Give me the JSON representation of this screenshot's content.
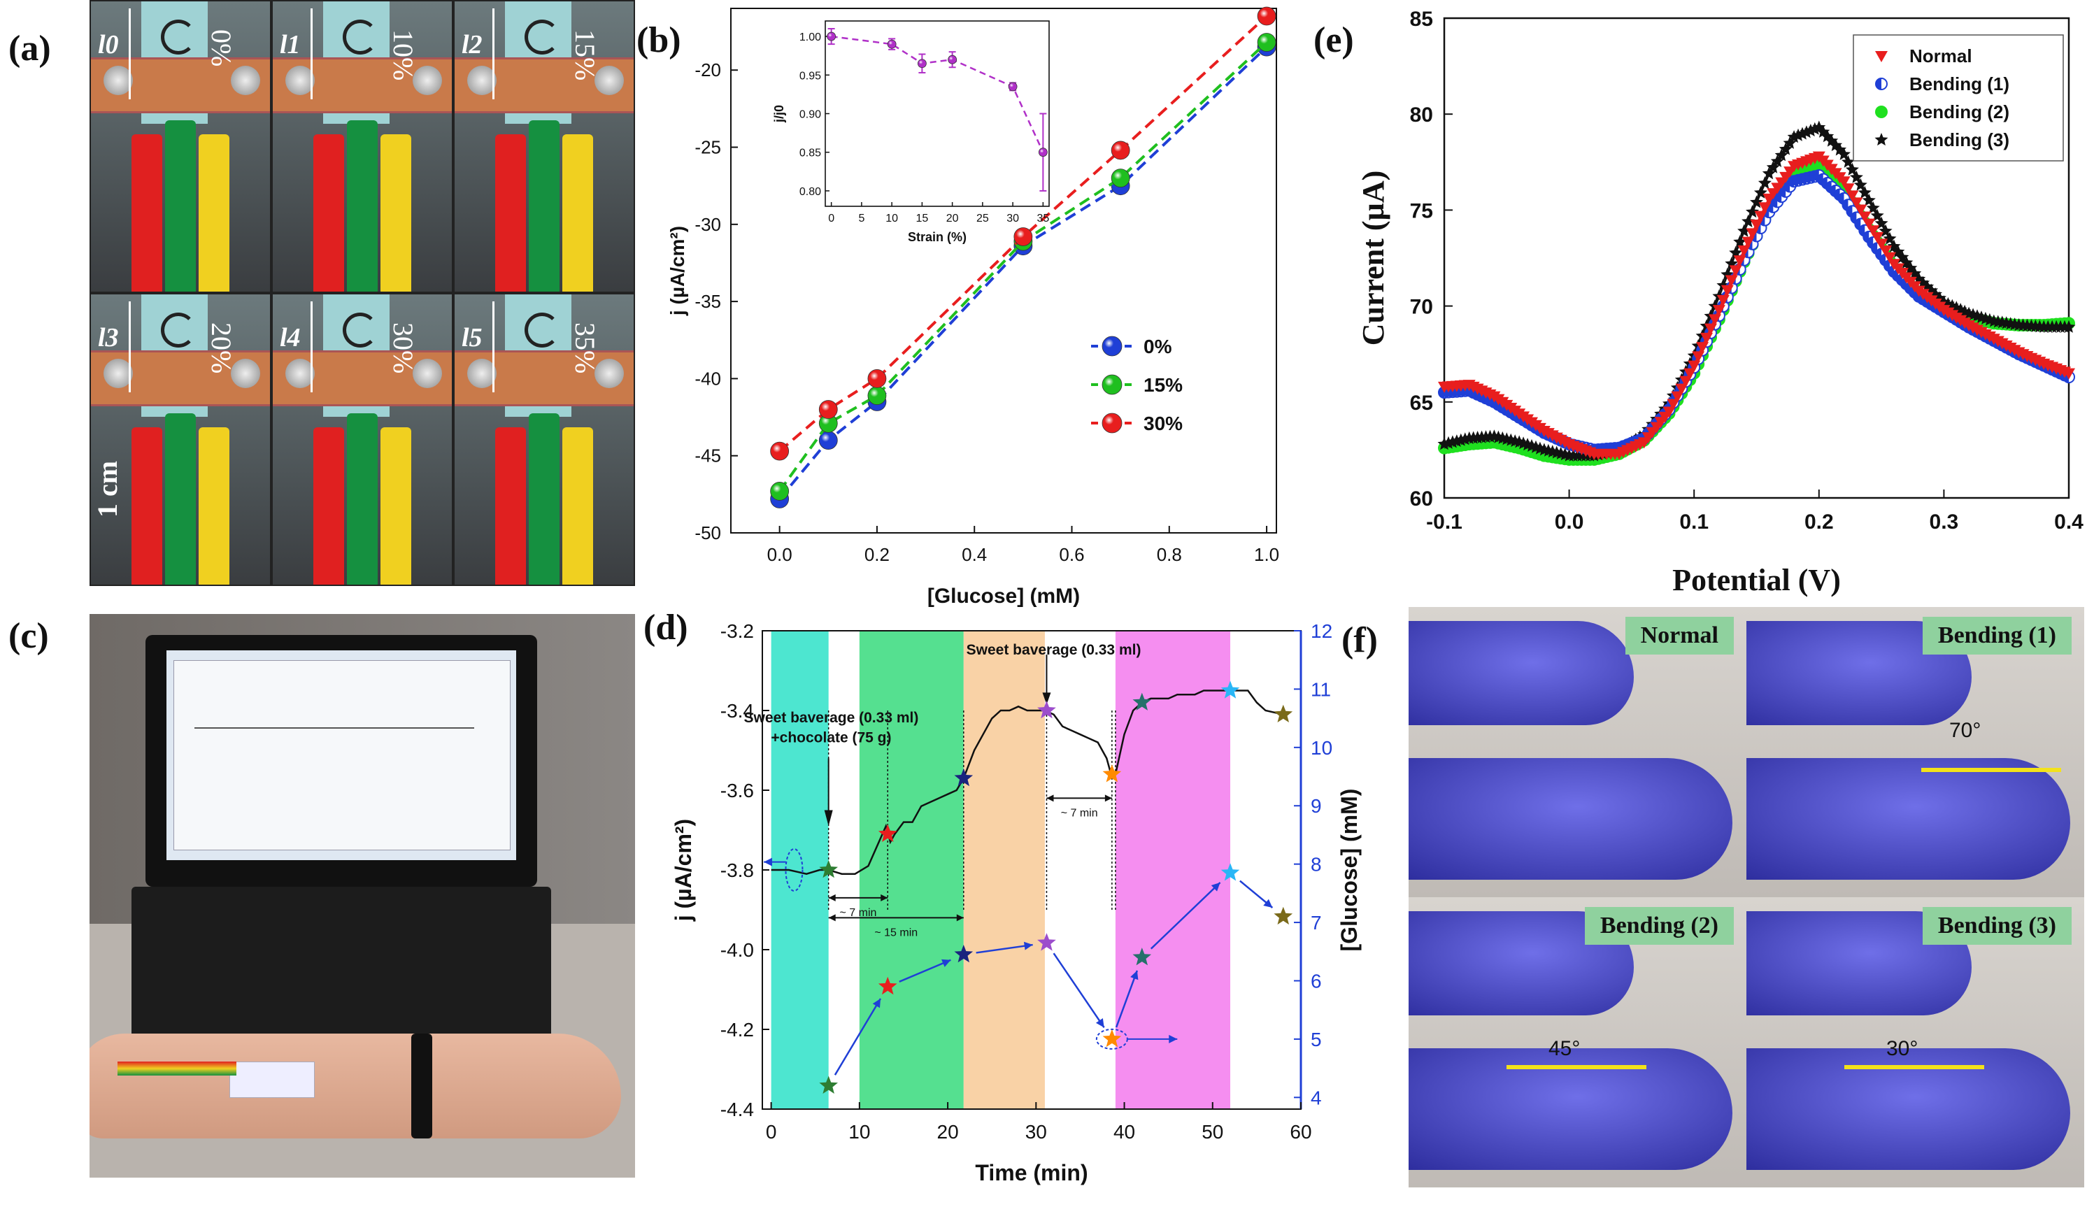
{
  "panel_labels": {
    "a": "(a)",
    "b": "(b)",
    "c": "(c)",
    "d": "(d)",
    "e": "(e)",
    "f": "(f)"
  },
  "panel_a": {
    "cells": [
      {
        "length_label": "l0",
        "strain": "0%"
      },
      {
        "length_label": "l1",
        "strain": "10%"
      },
      {
        "length_label": "l2",
        "strain": "15%"
      },
      {
        "length_label": "l3",
        "strain": "20%"
      },
      {
        "length_label": "l4",
        "strain": "30%"
      },
      {
        "length_label": "l5",
        "strain": "35%"
      }
    ],
    "scale_bar": "1 cm"
  },
  "panel_f": {
    "labels": [
      "Normal",
      "Bending (1)",
      "Bending (2)",
      "Bending (3)"
    ],
    "angles": [
      "",
      "70°",
      "45°",
      "30°"
    ]
  },
  "colors": {
    "blue": "#1f3fd6",
    "green": "#1fbf1f",
    "red": "#e81e1e",
    "purple": "#b030c8"
  },
  "chart_data": [
    {
      "id": "b",
      "type": "line",
      "xlabel": "[Glucose] (mM)",
      "ylabel": "j (µA/cm²)",
      "xlim": [
        -0.1,
        1.02
      ],
      "ylim": [
        -50,
        -16
      ],
      "xticks": [
        0.0,
        0.2,
        0.4,
        0.6,
        0.8,
        1.0
      ],
      "yticks": [
        -50,
        -45,
        -40,
        -35,
        -30,
        -25,
        -20
      ],
      "x": [
        0,
        0.1,
        0.2,
        0.5,
        0.7,
        1.0
      ],
      "series": [
        {
          "name": "0%",
          "color": "#1f3fd6",
          "values": [
            -47.8,
            -44.0,
            -41.5,
            -31.4,
            -27.5,
            -18.5
          ]
        },
        {
          "name": "15%",
          "color": "#1fbf1f",
          "values": [
            -47.3,
            -42.9,
            -41.1,
            -31.1,
            -27.0,
            -18.2
          ]
        },
        {
          "name": "30%",
          "color": "#e81e1e",
          "values": [
            -44.7,
            -42.0,
            -40.0,
            -30.8,
            -25.2,
            -16.5
          ]
        }
      ],
      "legend_position": "middle-right",
      "inset": {
        "type": "line",
        "xlabel": "Strain (%)",
        "ylabel": "j/j0",
        "xlim": [
          -1,
          36
        ],
        "ylim": [
          0.78,
          1.02
        ],
        "xticks": [
          0,
          5,
          10,
          15,
          20,
          25,
          30,
          35
        ],
        "yticks": [
          0.8,
          0.85,
          0.9,
          0.95,
          1.0
        ],
        "x": [
          0,
          10,
          15,
          20,
          30,
          35
        ],
        "values": [
          1.0,
          0.99,
          0.965,
          0.97,
          0.935,
          0.85
        ],
        "errors": [
          0.01,
          0.007,
          0.012,
          0.01,
          0.005,
          0.05
        ],
        "color": "#b030c8"
      }
    },
    {
      "id": "d",
      "type": "line",
      "xlabel": "Time (min)",
      "ylabel": "j (µA/cm²)",
      "ylabel_right": "[Glucose] (mM)",
      "xlim": [
        -1,
        60
      ],
      "ylim": [
        -4.4,
        -3.2
      ],
      "ylim_right": [
        3.8,
        12
      ],
      "xticks": [
        0,
        10,
        20,
        30,
        40,
        50,
        60
      ],
      "yticks": [
        -4.4,
        -4.2,
        -4.0,
        -3.8,
        -3.6,
        -3.4,
        -3.2
      ],
      "yticks_right": [
        4,
        5,
        6,
        7,
        8,
        9,
        10,
        11,
        12
      ],
      "bands": [
        {
          "x0": 0,
          "x1": 6.5,
          "color": "#4de6d0"
        },
        {
          "x0": 10,
          "x1": 21.8,
          "color": "#55e090"
        },
        {
          "x0": 21.8,
          "x1": 31,
          "color": "#f9d2a6"
        },
        {
          "x0": 39,
          "x1": 52,
          "color": "#f58ef0"
        }
      ],
      "current_trace": {
        "x": [
          0,
          2,
          4,
          5.5,
          6.5,
          8,
          9.5,
          11,
          12,
          13,
          13.5,
          14,
          15,
          16,
          17,
          18,
          19,
          20,
          21,
          21.8,
          23,
          24,
          25,
          26,
          27,
          28,
          29,
          30,
          31,
          32,
          33,
          34,
          35,
          36,
          37,
          38,
          38.5,
          39,
          40,
          41,
          42,
          43,
          44,
          45,
          46,
          47,
          48,
          49,
          50,
          52,
          54,
          55,
          56,
          58
        ],
        "values": [
          -3.8,
          -3.8,
          -3.81,
          -3.8,
          -3.8,
          -3.81,
          -3.81,
          -3.79,
          -3.74,
          -3.69,
          -3.73,
          -3.71,
          -3.68,
          -3.68,
          -3.64,
          -3.63,
          -3.62,
          -3.61,
          -3.6,
          -3.57,
          -3.5,
          -3.46,
          -3.42,
          -3.4,
          -3.4,
          -3.39,
          -3.4,
          -3.4,
          -3.4,
          -3.41,
          -3.44,
          -3.45,
          -3.46,
          -3.47,
          -3.48,
          -3.52,
          -3.56,
          -3.56,
          -3.46,
          -3.4,
          -3.38,
          -3.37,
          -3.37,
          -3.37,
          -3.36,
          -3.36,
          -3.36,
          -3.35,
          -3.35,
          -3.35,
          -3.35,
          -3.38,
          -3.4,
          -3.41
        ]
      },
      "current_stars": [
        {
          "x": 6.5,
          "y": -3.8,
          "color": "#2e7d32"
        },
        {
          "x": 13.2,
          "y": -3.71,
          "color": "#e81e1e"
        },
        {
          "x": 21.8,
          "y": -3.57,
          "color": "#1a237e"
        },
        {
          "x": 31.2,
          "y": -3.4,
          "color": "#9c4dcc"
        },
        {
          "x": 38.6,
          "y": -3.56,
          "color": "#ff8a00"
        },
        {
          "x": 42,
          "y": -3.38,
          "color": "#26706b"
        },
        {
          "x": 52,
          "y": -3.35,
          "color": "#29b6f6"
        },
        {
          "x": 58,
          "y": -3.41,
          "color": "#7a6a1a"
        }
      ],
      "glucose_stars": [
        {
          "x": 6.5,
          "y": 4.2,
          "color": "#2e7d32"
        },
        {
          "x": 13.2,
          "y": 5.9,
          "color": "#e81e1e"
        },
        {
          "x": 21.8,
          "y": 6.45,
          "color": "#1a237e"
        },
        {
          "x": 31.2,
          "y": 6.65,
          "color": "#9c4dcc"
        },
        {
          "x": 38.6,
          "y": 5.0,
          "color": "#ff8a00"
        },
        {
          "x": 42,
          "y": 6.4,
          "color": "#26706b"
        },
        {
          "x": 52,
          "y": 7.85,
          "color": "#29b6f6"
        },
        {
          "x": 58,
          "y": 7.1,
          "color": "#7a6a1a"
        }
      ],
      "annotations": {
        "event1": "Sweet baverage (0.33 ml)",
        "event1b": "+chocolate (75 g)",
        "event2": "Sweet baverage (0.33 ml)",
        "interval1": "~ 7 min",
        "interval2": "~ 15 min",
        "interval3": "~ 7 min"
      }
    },
    {
      "id": "e",
      "type": "line",
      "xlabel": "Potential (V)",
      "ylabel": "Current (µA)",
      "xlim": [
        -0.1,
        0.4
      ],
      "ylim": [
        60,
        85
      ],
      "xticks": [
        -0.1,
        0.0,
        0.1,
        0.2,
        0.3,
        0.4
      ],
      "yticks": [
        60,
        65,
        70,
        75,
        80,
        85
      ],
      "legend_position": "top-right",
      "series": [
        {
          "name": "Normal",
          "marker": "triangle-down",
          "color": "#e81e1e",
          "x": [
            -0.1,
            -0.08,
            -0.06,
            -0.04,
            -0.02,
            0.0,
            0.02,
            0.04,
            0.06,
            0.08,
            0.1,
            0.12,
            0.14,
            0.16,
            0.18,
            0.2,
            0.22,
            0.24,
            0.26,
            0.28,
            0.3,
            0.32,
            0.34,
            0.36,
            0.38,
            0.4
          ],
          "values": [
            65.8,
            65.9,
            65.3,
            64.4,
            63.5,
            62.8,
            62.3,
            62.3,
            62.9,
            64.5,
            66.9,
            69.8,
            72.9,
            75.6,
            77.3,
            77.8,
            76.5,
            74.3,
            72.2,
            70.8,
            69.8,
            69.0,
            68.3,
            67.6,
            67.0,
            66.5
          ]
        },
        {
          "name": "Bending (1)",
          "marker": "half-circle",
          "color": "#1f3fd6",
          "x": [
            -0.1,
            -0.08,
            -0.06,
            -0.04,
            -0.02,
            0.0,
            0.02,
            0.04,
            0.06,
            0.08,
            0.1,
            0.12,
            0.14,
            0.16,
            0.18,
            0.2,
            0.22,
            0.24,
            0.26,
            0.28,
            0.3,
            0.32,
            0.34,
            0.36,
            0.38,
            0.4
          ],
          "values": [
            65.5,
            65.6,
            65.0,
            64.2,
            63.4,
            62.8,
            62.5,
            62.6,
            63.1,
            64.6,
            66.8,
            69.5,
            72.4,
            74.9,
            76.5,
            76.8,
            75.6,
            73.6,
            71.8,
            70.5,
            69.7,
            68.9,
            68.2,
            67.5,
            66.9,
            66.3
          ]
        },
        {
          "name": "Bending (2)",
          "marker": "circle",
          "color": "#1fe01f",
          "x": [
            -0.1,
            -0.08,
            -0.06,
            -0.04,
            -0.02,
            0.0,
            0.02,
            0.04,
            0.06,
            0.08,
            0.1,
            0.12,
            0.14,
            0.16,
            0.18,
            0.2,
            0.22,
            0.24,
            0.26,
            0.28,
            0.3,
            0.32,
            0.34,
            0.36,
            0.38,
            0.4
          ],
          "values": [
            62.6,
            62.8,
            62.9,
            62.6,
            62.2,
            62.0,
            62.0,
            62.3,
            63.0,
            64.4,
            66.5,
            69.3,
            72.3,
            75.0,
            76.8,
            77.3,
            76.1,
            74.0,
            72.0,
            70.6,
            69.9,
            69.4,
            69.1,
            69.0,
            69.0,
            69.1
          ]
        },
        {
          "name": "Bending (3)",
          "marker": "star",
          "color": "#111111",
          "x": [
            -0.1,
            -0.08,
            -0.06,
            -0.04,
            -0.02,
            0.0,
            0.02,
            0.04,
            0.06,
            0.08,
            0.1,
            0.12,
            0.14,
            0.16,
            0.18,
            0.2,
            0.22,
            0.24,
            0.26,
            0.28,
            0.3,
            0.32,
            0.34,
            0.36,
            0.38,
            0.4
          ],
          "values": [
            62.8,
            63.1,
            63.2,
            62.9,
            62.5,
            62.2,
            62.2,
            62.5,
            63.3,
            64.9,
            67.4,
            70.5,
            73.9,
            76.9,
            78.8,
            79.3,
            77.9,
            75.5,
            73.1,
            71.4,
            70.2,
            69.6,
            69.2,
            69.0,
            68.9,
            68.9
          ]
        }
      ]
    }
  ]
}
